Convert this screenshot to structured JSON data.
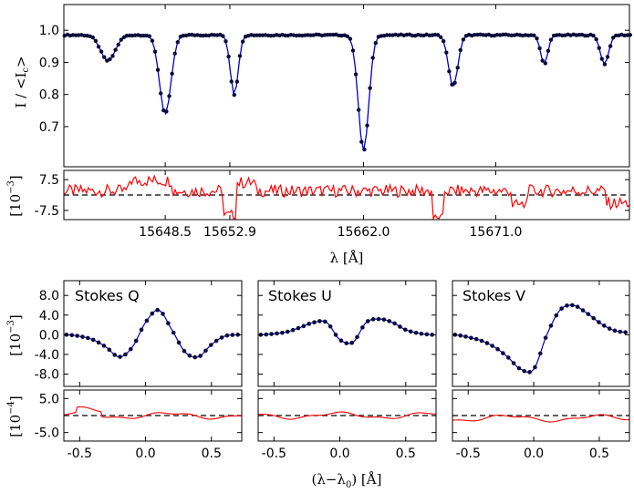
{
  "chart_data": [
    {
      "id": "intensity",
      "type": "line",
      "ylabel": "I / <I_c>",
      "xlim": [
        15641.6,
        15680.1
      ],
      "ylim": [
        0.575,
        1.08
      ],
      "yticks": [
        "1.0",
        "0.9",
        "0.8",
        "0.7"
      ],
      "ytick_values": [
        1.0,
        0.9,
        0.8,
        0.7
      ],
      "continuum": 0.985,
      "lines": [
        {
          "center": 15644.6,
          "depth": 0.08,
          "width": 0.7
        },
        {
          "center": 15648.5,
          "depth": 0.245,
          "width": 0.55
        },
        {
          "center": 15653.2,
          "depth": 0.185,
          "width": 0.38
        },
        {
          "center": 15662.0,
          "depth": 0.36,
          "width": 0.5
        },
        {
          "center": 15668.1,
          "depth": 0.16,
          "width": 0.45
        },
        {
          "center": 15674.3,
          "depth": 0.09,
          "width": 0.35
        },
        {
          "center": 15678.4,
          "depth": 0.09,
          "width": 0.4
        }
      ],
      "series": [
        {
          "role": "observed",
          "color": "#000000",
          "marker": "dot"
        },
        {
          "role": "fit",
          "color": "#0000cc",
          "marker": "line"
        }
      ]
    },
    {
      "id": "intensity-residual",
      "type": "line",
      "ylabel": "[10^-3]",
      "xlabel": "λ [Å]",
      "xlim": [
        15641.6,
        15680.1
      ],
      "ylim": [
        -12,
        12
      ],
      "yticks": [
        "7.5",
        "-7.5"
      ],
      "ytick_values": [
        7.5,
        -7.5
      ],
      "xticks": [
        "15648.5",
        "15652.9",
        "15662.0",
        "15671.0"
      ],
      "xtick_values": [
        15648.5,
        15652.9,
        15662.0,
        15671.0
      ],
      "residual_color": "#ff0000",
      "zero_line": "dashed"
    },
    {
      "id": "stokes-q",
      "type": "line",
      "title": "Stokes Q",
      "ylabel": "[10^-3]",
      "xlim": [
        -0.62,
        0.73
      ],
      "ylim": [
        -10.5,
        11
      ],
      "yticks": [
        "8.0",
        "4.0",
        "0.0",
        "-4.0",
        "-8.0"
      ],
      "ytick_values": [
        8.0,
        4.0,
        0.0,
        -4.0,
        -8.0
      ],
      "profile_x": [
        -0.6,
        -0.5,
        -0.4,
        -0.3,
        -0.2,
        -0.1,
        0.0,
        0.1,
        0.2,
        0.3,
        0.4,
        0.5,
        0.6,
        0.7
      ],
      "profile_y": [
        0.0,
        -0.3,
        -1.0,
        -2.5,
        -4.5,
        -2.5,
        2.5,
        5.0,
        1.0,
        -3.5,
        -4.5,
        -2.0,
        -0.3,
        0.0
      ]
    },
    {
      "id": "stokes-u",
      "type": "line",
      "title": "Stokes U",
      "xlim": [
        -0.62,
        0.73
      ],
      "ylim": [
        -10.5,
        11
      ],
      "profile_x": [
        -0.6,
        -0.5,
        -0.4,
        -0.3,
        -0.2,
        -0.1,
        0.0,
        0.1,
        0.2,
        0.3,
        0.4,
        0.5,
        0.6,
        0.7
      ],
      "profile_y": [
        0.0,
        0.2,
        0.6,
        1.5,
        2.5,
        2.5,
        -1.0,
        -1.5,
        2.5,
        3.2,
        2.5,
        1.0,
        0.3,
        0.0
      ]
    },
    {
      "id": "stokes-v",
      "type": "line",
      "title": "Stokes V",
      "xlim": [
        -0.62,
        0.73
      ],
      "ylim": [
        -10.5,
        11
      ],
      "profile_x": [
        -0.6,
        -0.5,
        -0.4,
        -0.3,
        -0.2,
        -0.1,
        0.0,
        0.1,
        0.2,
        0.3,
        0.4,
        0.5,
        0.6,
        0.7
      ],
      "profile_y": [
        0.0,
        -0.5,
        -1.2,
        -2.5,
        -4.5,
        -7.0,
        -7.0,
        0.0,
        5.0,
        6.0,
        4.5,
        2.5,
        1.0,
        0.5
      ]
    },
    {
      "id": "stokes-residuals",
      "type": "line",
      "ylabel": "[10^-4]",
      "xlabel": "(λ−λ0) [Å]",
      "xlim": [
        -0.62,
        0.73
      ],
      "ylim": [
        -7.5,
        7.5
      ],
      "yticks": [
        "5.0",
        "-5.0"
      ],
      "ytick_values": [
        5.0,
        -5.0
      ],
      "xticks": [
        "-0.5",
        "0.0",
        "0.5"
      ],
      "xtick_values": [
        -0.5,
        0.0,
        0.5
      ],
      "residual_color": "#ff0000",
      "zero_line": "dashed"
    }
  ]
}
